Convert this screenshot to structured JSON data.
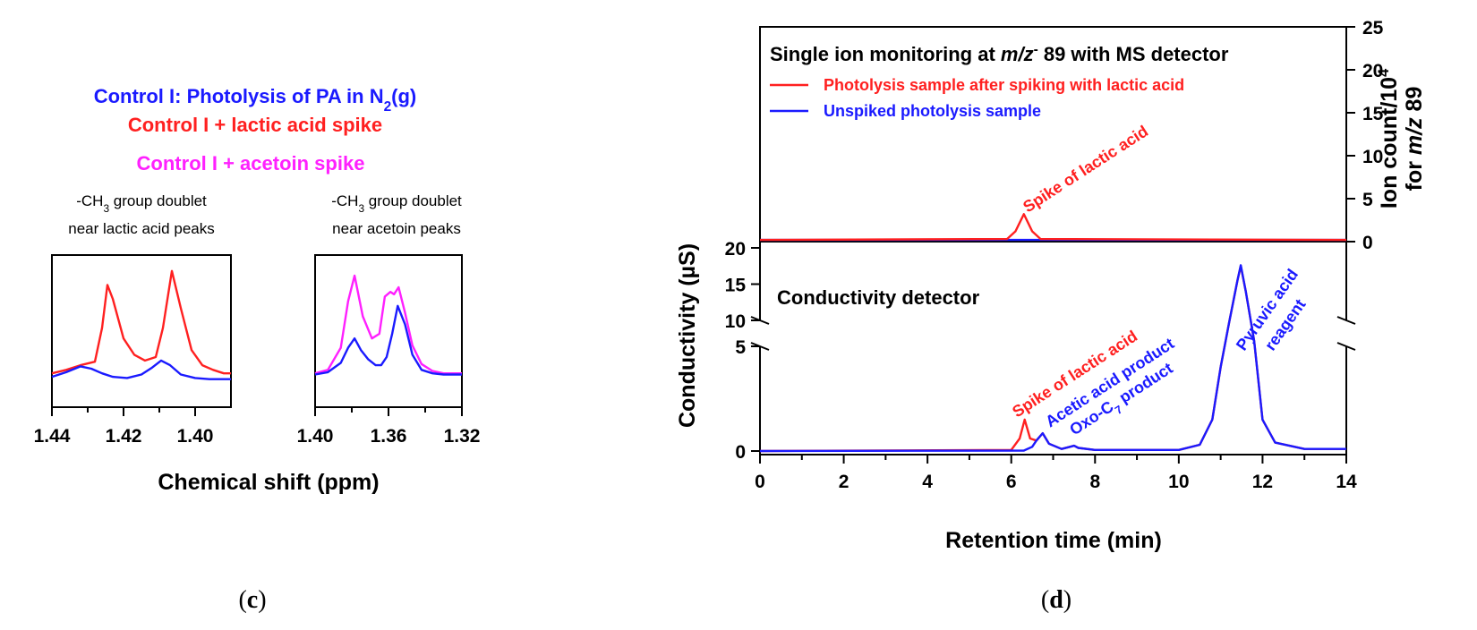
{
  "colors": {
    "red": "#ff2020",
    "blue": "#1a1aff",
    "magenta": "#ff20ff",
    "black": "#000000"
  },
  "panel_c": {
    "caption": "(c)",
    "legend": [
      {
        "text": "Control I: Photolysis of PA in N2(g)",
        "color": "blue"
      },
      {
        "text": "Control I + lactic acid spike",
        "color": "red"
      },
      {
        "text": "Control I + acetoin spike",
        "color": "magenta"
      }
    ],
    "left_label": [
      "-CH3 group doublet",
      "near lactic acid peaks"
    ],
    "right_label": [
      "-CH3 group doublet",
      "near acetoin peaks"
    ],
    "xlabel": "Chemical shift (ppm)"
  },
  "panel_d": {
    "caption": "(d)",
    "top_title": "Single ion monitoring at m/z- 89 with MS detector",
    "legend": [
      {
        "text": "Photolysis sample after spiking with lactic acid",
        "color": "red"
      },
      {
        "text": "Unspiked photolysis sample",
        "color": "blue"
      }
    ],
    "top_annotation": "Spike of lactic acid",
    "right_axis_label": [
      "Ion count/10^4",
      "for m/z 89"
    ],
    "bottom_title": "Conductivity detector",
    "ylabel": "Conductivity (µS)",
    "xlabel": "Retention time (min)",
    "annotations": {
      "spike": "Spike of lactic acid",
      "acetic": "Acetic acid product",
      "oxo": "Oxo-C7 product",
      "pyruvic": [
        "Pyruvic acid",
        "reagent"
      ]
    }
  },
  "chart_data": [
    {
      "type": "line",
      "title": "(c) NMR -CH3 doublet near lactic acid peaks",
      "xlabel": "Chemical shift (ppm)",
      "xlim": [
        1.44,
        1.39
      ],
      "xticks": [
        1.44,
        1.42,
        1.4
      ],
      "series": [
        {
          "name": "Control I + lactic acid spike",
          "color": "red",
          "x": [
            1.44,
            1.436,
            1.432,
            1.428,
            1.426,
            1.4245,
            1.423,
            1.42,
            1.417,
            1.414,
            1.411,
            1.409,
            1.4065,
            1.404,
            1.401,
            1.398,
            1.395,
            1.392,
            1.39
          ],
          "y": [
            0.06,
            0.09,
            0.13,
            0.16,
            0.45,
            0.82,
            0.7,
            0.36,
            0.22,
            0.17,
            0.2,
            0.45,
            0.94,
            0.62,
            0.26,
            0.13,
            0.09,
            0.06,
            0.06
          ]
        },
        {
          "name": "Control I: Photolysis of PA in N2(g)",
          "color": "blue",
          "x": [
            1.44,
            1.436,
            1.432,
            1.429,
            1.426,
            1.423,
            1.419,
            1.415,
            1.412,
            1.4095,
            1.407,
            1.404,
            1.4,
            1.396,
            1.39
          ],
          "y": [
            0.03,
            0.07,
            0.12,
            0.1,
            0.06,
            0.03,
            0.02,
            0.05,
            0.11,
            0.17,
            0.13,
            0.05,
            0.02,
            0.01,
            0.01
          ]
        }
      ]
    },
    {
      "type": "line",
      "title": "(c) NMR -CH3 doublet near acetoin peaks",
      "xlabel": "Chemical shift (ppm)",
      "xlim": [
        1.4,
        1.32
      ],
      "xticks": [
        1.4,
        1.36,
        1.32
      ],
      "series": [
        {
          "name": "Control I + acetoin spike",
          "color": "magenta",
          "x": [
            1.4,
            1.393,
            1.386,
            1.382,
            1.3785,
            1.374,
            1.369,
            1.365,
            1.362,
            1.359,
            1.357,
            1.3545,
            1.351,
            1.347,
            1.342,
            1.336,
            1.33,
            1.32
          ],
          "y": [
            0.06,
            0.09,
            0.28,
            0.68,
            0.9,
            0.55,
            0.36,
            0.4,
            0.72,
            0.76,
            0.74,
            0.8,
            0.58,
            0.3,
            0.14,
            0.08,
            0.06,
            0.06
          ]
        },
        {
          "name": "Control I: Photolysis of PA in N2(g)",
          "color": "blue",
          "x": [
            1.4,
            1.393,
            1.386,
            1.382,
            1.3785,
            1.375,
            1.371,
            1.367,
            1.364,
            1.361,
            1.358,
            1.355,
            1.351,
            1.347,
            1.342,
            1.336,
            1.33,
            1.32
          ],
          "y": [
            0.05,
            0.07,
            0.15,
            0.28,
            0.36,
            0.26,
            0.18,
            0.13,
            0.13,
            0.2,
            0.4,
            0.64,
            0.48,
            0.22,
            0.09,
            0.06,
            0.05,
            0.05
          ]
        }
      ]
    },
    {
      "type": "line",
      "title": "Single ion monitoring at m/z- 89 with MS detector",
      "xlabel": "Retention time (min)",
      "ylabel": "Ion count/10^4 for m/z 89",
      "xlim": [
        0,
        14
      ],
      "ylim": [
        0,
        25
      ],
      "yticks": [
        0,
        5,
        10,
        15,
        20,
        25
      ],
      "series": [
        {
          "name": "Photolysis sample after spiking with lactic acid",
          "color": "red",
          "x": [
            0,
            5.9,
            6.1,
            6.3,
            6.5,
            6.7,
            14
          ],
          "y": [
            0.2,
            0.3,
            1.2,
            3.2,
            1.2,
            0.3,
            0.2
          ]
        },
        {
          "name": "Unspiked photolysis sample",
          "color": "blue",
          "x": [
            0,
            14
          ],
          "y": [
            0.2,
            0.2
          ]
        }
      ]
    },
    {
      "type": "line",
      "title": "Conductivity detector",
      "xlabel": "Retention time (min)",
      "ylabel": "Conductivity (µS)",
      "xlim": [
        0,
        14
      ],
      "ylim_lower": [
        0,
        5
      ],
      "ylim_upper": [
        10,
        20
      ],
      "xticks": [
        0,
        2,
        4,
        6,
        8,
        10,
        12,
        14
      ],
      "yticks": [
        0,
        5,
        10,
        15,
        20
      ],
      "series": [
        {
          "name": "Photolysis sample after spiking with lactic acid",
          "color": "red",
          "x": [
            0,
            6.0,
            6.2,
            6.32,
            6.45,
            6.6,
            6.75,
            6.9,
            7.2,
            7.4,
            7.5,
            7.6,
            8.0,
            10.0,
            10.5,
            10.8,
            11.0,
            11.2,
            11.4,
            11.48,
            11.6,
            11.8,
            12.0,
            12.3,
            13.0,
            14
          ],
          "y": [
            0,
            0.05,
            0.6,
            1.5,
            0.6,
            0.5,
            0.85,
            0.35,
            0.1,
            0.2,
            0.25,
            0.15,
            0.05,
            0.05,
            0.3,
            1.5,
            4.0,
            9.5,
            15.5,
            17.5,
            14.0,
            6.0,
            1.5,
            0.4,
            0.1,
            0.1
          ]
        },
        {
          "name": "Unspiked photolysis sample",
          "color": "blue",
          "x": [
            0,
            6.3,
            6.5,
            6.6,
            6.75,
            6.9,
            7.2,
            7.4,
            7.5,
            7.6,
            8.0,
            10.0,
            10.5,
            10.8,
            11.0,
            11.2,
            11.4,
            11.48,
            11.6,
            11.8,
            12.0,
            12.3,
            13.0,
            14
          ],
          "y": [
            0,
            0.02,
            0.2,
            0.5,
            0.85,
            0.35,
            0.1,
            0.2,
            0.25,
            0.15,
            0.05,
            0.05,
            0.3,
            1.5,
            4.0,
            9.5,
            15.5,
            17.6,
            14.0,
            6.0,
            1.5,
            0.4,
            0.1,
            0.1
          ]
        }
      ]
    }
  ]
}
